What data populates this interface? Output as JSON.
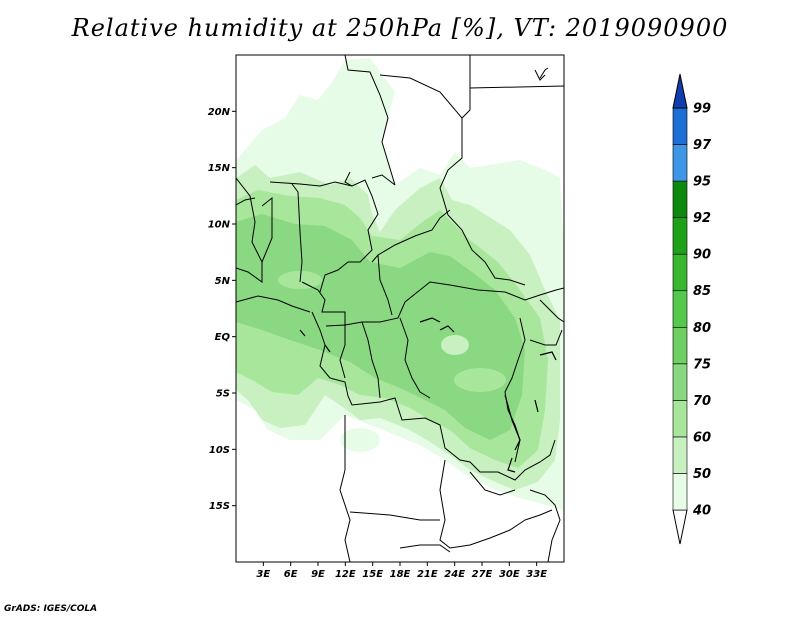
{
  "title": "Relative humidity at 250hPa [%], VT: 2019090900",
  "credit": "GrADS: IGES/COLA",
  "map": {
    "lon_range": [
      0,
      36
    ],
    "lat_range": [
      -20,
      25
    ],
    "lat_ticks": [
      {
        "value": 20,
        "label": "20N"
      },
      {
        "value": 15,
        "label": "15N"
      },
      {
        "value": 10,
        "label": "10N"
      },
      {
        "value": 5,
        "label": "5N"
      },
      {
        "value": 0,
        "label": "EQ"
      },
      {
        "value": -5,
        "label": "5S"
      },
      {
        "value": -10,
        "label": "10S"
      },
      {
        "value": -15,
        "label": "15S"
      }
    ],
    "lon_ticks": [
      {
        "value": 3,
        "label": "3E"
      },
      {
        "value": 6,
        "label": "6E"
      },
      {
        "value": 9,
        "label": "9E"
      },
      {
        "value": 12,
        "label": "12E"
      },
      {
        "value": 15,
        "label": "15E"
      },
      {
        "value": 18,
        "label": "18E"
      },
      {
        "value": 21,
        "label": "21E"
      },
      {
        "value": 24,
        "label": "24E"
      },
      {
        "value": 27,
        "label": "27E"
      },
      {
        "value": 30,
        "label": "30E"
      },
      {
        "value": 33,
        "label": "33E"
      }
    ]
  },
  "colorbar": {
    "levels": [
      "40",
      "50",
      "60",
      "70",
      "75",
      "80",
      "85",
      "90",
      "92",
      "95",
      "97",
      "99"
    ],
    "colors": [
      "#e6fce6",
      "#c8f0c0",
      "#a8e69c",
      "#8ad882",
      "#6ecf62",
      "#53c84a",
      "#38b62e",
      "#1fa019",
      "#0d8a0d",
      "#3f96e6",
      "#1e6ed8",
      "#1450be"
    ],
    "under_color": "#ffffff",
    "over_color": "#0e3fae"
  }
}
